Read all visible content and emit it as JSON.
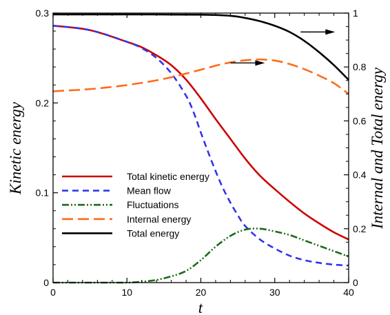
{
  "chart_data": {
    "type": "line",
    "xlabel": "t",
    "ylabel_left": "Kinetic energy",
    "ylabel_right": "Internal and Total energy",
    "xlim": [
      0,
      40
    ],
    "ylim_left": [
      0,
      0.3
    ],
    "ylim_right": [
      0,
      1
    ],
    "x_ticks": [
      "0",
      "10",
      "20",
      "30",
      "40"
    ],
    "y_left_ticks": [
      "0",
      "0.1",
      "0.2",
      "0.3"
    ],
    "y_right_ticks": [
      "0",
      "0.2",
      "0.4",
      "0.6",
      "0.8",
      "1"
    ],
    "grid": false,
    "legend_position": "lower-left",
    "series": [
      {
        "name": "Total kinetic energy",
        "axis": "left",
        "color": "#cc0000",
        "dash": "solid",
        "x": [
          0,
          5,
          10,
          12,
          14,
          16,
          18,
          20,
          22,
          24,
          26,
          28,
          30,
          32,
          34,
          36,
          38,
          40
        ],
        "y": [
          0.286,
          0.281,
          0.268,
          0.262,
          0.253,
          0.242,
          0.226,
          0.205,
          0.182,
          0.16,
          0.138,
          0.119,
          0.104,
          0.09,
          0.077,
          0.066,
          0.056,
          0.048
        ]
      },
      {
        "name": "Mean flow",
        "axis": "left",
        "color": "#3333ee",
        "dash": "dashed",
        "x": [
          0,
          5,
          10,
          12,
          14,
          16,
          18,
          19,
          20,
          21,
          22,
          23,
          24,
          25,
          26,
          28,
          30,
          32,
          34,
          36,
          38,
          40
        ],
        "y": [
          0.286,
          0.281,
          0.268,
          0.261,
          0.25,
          0.233,
          0.208,
          0.19,
          0.167,
          0.145,
          0.124,
          0.105,
          0.089,
          0.075,
          0.063,
          0.048,
          0.038,
          0.03,
          0.025,
          0.022,
          0.02,
          0.019
        ]
      },
      {
        "name": "Fluctuations",
        "axis": "left",
        "color": "#1a6b1a",
        "dash": "dash-dot-dot",
        "x": [
          0,
          8,
          10,
          12,
          14,
          16,
          18,
          20,
          22,
          24,
          26,
          28,
          30,
          32,
          34,
          36,
          38,
          40
        ],
        "y": [
          0,
          0,
          0,
          0.001,
          0.003,
          0.007,
          0.013,
          0.025,
          0.04,
          0.052,
          0.059,
          0.06,
          0.057,
          0.053,
          0.047,
          0.041,
          0.035,
          0.029
        ]
      },
      {
        "name": "Internal energy",
        "axis": "right",
        "color": "#ff6a1a",
        "dash": "long-dash",
        "x": [
          0,
          5,
          10,
          15,
          20,
          22,
          24,
          26,
          28,
          30,
          32,
          34,
          36,
          38,
          40
        ],
        "y": [
          0.71,
          0.718,
          0.733,
          0.756,
          0.79,
          0.805,
          0.817,
          0.825,
          0.828,
          0.824,
          0.811,
          0.792,
          0.768,
          0.74,
          0.7
        ]
      },
      {
        "name": "Total energy",
        "axis": "right",
        "color": "#000000",
        "dash": "solid",
        "x": [
          0,
          10,
          20,
          24,
          26,
          28,
          30,
          32,
          34,
          36,
          38,
          40
        ],
        "y": [
          0.995,
          0.995,
          0.994,
          0.99,
          0.982,
          0.97,
          0.953,
          0.93,
          0.897,
          0.855,
          0.807,
          0.752
        ]
      }
    ],
    "annotations": [
      {
        "type": "arrow",
        "direction": "right",
        "x": 33.5,
        "y_right": 0.93
      },
      {
        "type": "arrow",
        "direction": "right",
        "x": 24,
        "y_right": 0.815
      }
    ]
  }
}
